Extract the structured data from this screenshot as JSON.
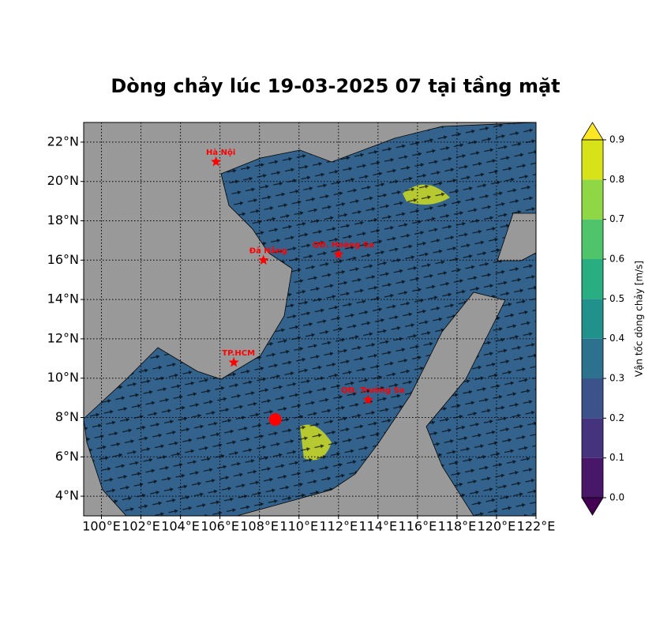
{
  "chart_data": {
    "type": "map",
    "title": "Dòng chảy lúc 19-03-2025 07 tại tầng mặt",
    "xlim": [
      99.1,
      122
    ],
    "ylim": [
      3,
      23
    ],
    "grid": true,
    "xticks": [
      {
        "value": 100,
        "label": "100°E"
      },
      {
        "value": 102,
        "label": "102°E"
      },
      {
        "value": 104,
        "label": "104°E"
      },
      {
        "value": 106,
        "label": "106°E"
      },
      {
        "value": 108,
        "label": "108°E"
      },
      {
        "value": 110,
        "label": "110°E"
      },
      {
        "value": 112,
        "label": "112°E"
      },
      {
        "value": 114,
        "label": "114°E"
      },
      {
        "value": 116,
        "label": "116°E"
      },
      {
        "value": 118,
        "label": "118°E"
      },
      {
        "value": 120,
        "label": "120°E"
      },
      {
        "value": 122,
        "label": "122°E"
      }
    ],
    "yticks": [
      {
        "value": 4,
        "label": "4°N"
      },
      {
        "value": 6,
        "label": "6°N"
      },
      {
        "value": 8,
        "label": "8°N"
      },
      {
        "value": 10,
        "label": "10°N"
      },
      {
        "value": 12,
        "label": "12°N"
      },
      {
        "value": 14,
        "label": "14°N"
      },
      {
        "value": 16,
        "label": "16°N"
      },
      {
        "value": 18,
        "label": "18°N"
      },
      {
        "value": 20,
        "label": "20°N"
      },
      {
        "value": 22,
        "label": "22°N"
      }
    ],
    "places": [
      {
        "name": "Hà Nội",
        "lon": 105.8,
        "lat": 21.0
      },
      {
        "name": "Đà Nẵng",
        "lon": 108.2,
        "lat": 16.0
      },
      {
        "name": "QĐ. Hoàng Sa",
        "lon": 112.0,
        "lat": 16.3
      },
      {
        "name": "TP.HCM",
        "lon": 106.7,
        "lat": 10.8
      },
      {
        "name": "QĐ. Trường Sa",
        "lon": 113.5,
        "lat": 8.9
      }
    ],
    "point": {
      "lon": 108.8,
      "lat": 7.9,
      "color": "#ff0000"
    },
    "colorbar": {
      "label": "Vận tốc dòng chảy [m/s]",
      "clim": [
        0,
        0.9
      ],
      "ticks": [
        {
          "value": 0,
          "label": "0.0"
        },
        0.1,
        0.2,
        0.3,
        0.4,
        0.5,
        0.6,
        0.7,
        0.8,
        0.9
      ],
      "colors": [
        "#481769",
        "#46337e",
        "#3b528b",
        "#2c728e",
        "#21918c",
        "#28ae80",
        "#4fc46a",
        "#8fd744",
        "#d8e219"
      ],
      "under_color": "#440154",
      "over_color": "#fde725"
    }
  }
}
